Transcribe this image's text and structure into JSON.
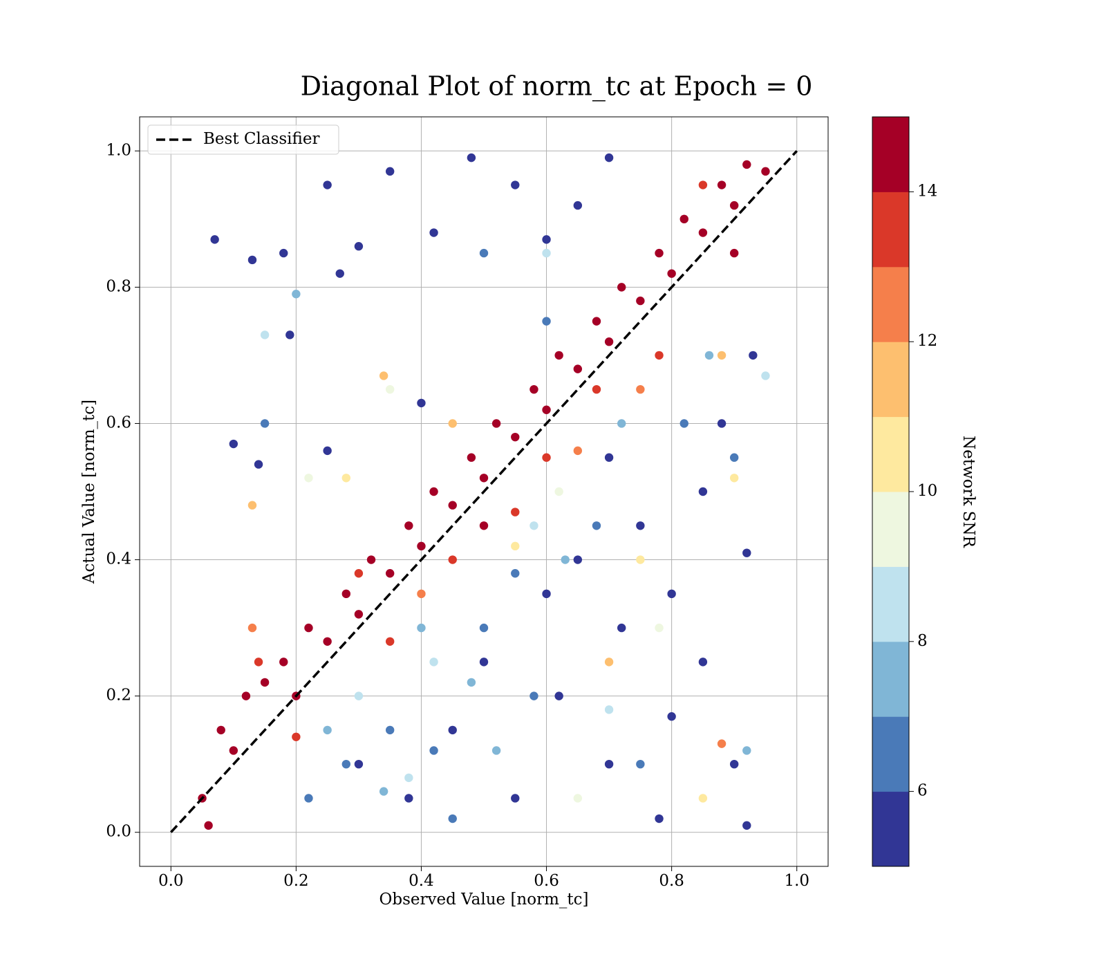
{
  "chart_data": {
    "type": "scatter",
    "title": "Diagonal Plot of norm_tc at Epoch = 0",
    "x_label": "Observed Value [norm_tc]",
    "y_label": "Actual Value [norm_tc]",
    "xlim": [
      -0.05,
      1.05
    ],
    "ylim": [
      -0.05,
      1.05
    ],
    "xticks": [
      {
        "value": 0,
        "label": "0.0"
      },
      {
        "value": 0.2,
        "label": "0.2"
      },
      {
        "value": 0.4,
        "label": "0.4"
      },
      {
        "value": 0.6,
        "label": "0.6"
      },
      {
        "value": 0.8,
        "label": "0.8"
      },
      {
        "value": 1,
        "label": "1.0"
      }
    ],
    "yticks": [
      {
        "value": 0,
        "label": "0.0"
      },
      {
        "value": 0.2,
        "label": "0.2"
      },
      {
        "value": 0.4,
        "label": "0.4"
      },
      {
        "value": 0.6,
        "label": "0.6"
      },
      {
        "value": 0.8,
        "label": "0.8"
      },
      {
        "value": 1,
        "label": "1.0"
      }
    ],
    "grid": true,
    "legend": "upper left",
    "reference_line": {
      "name": "Best Classifier",
      "x": [
        0,
        1
      ],
      "y": [
        0,
        1
      ],
      "color": "#000000",
      "style": "dashed"
    },
    "colorbar_label": "Network SNR",
    "clim": [
      5,
      15
    ],
    "colorbar_ticks": [
      6,
      8,
      10,
      12,
      14
    ],
    "colormap": [
      "#313695",
      "#4a7ab8",
      "#80b6d6",
      "#bfe2ee",
      "#eef7e0",
      "#fee99f",
      "#fdbf6f",
      "#f57f4b",
      "#da3829",
      "#a50026"
    ],
    "x": [
      0.07,
      0.13,
      0.18,
      0.25,
      0.3,
      0.35,
      0.42,
      0.48,
      0.55,
      0.6,
      0.65,
      0.7,
      0.1,
      0.19,
      0.27,
      0.4,
      0.7,
      0.75,
      0.8,
      0.85,
      0.9,
      0.92,
      0.62,
      0.55,
      0.7,
      0.8,
      0.45,
      0.38,
      0.6,
      0.5,
      0.72,
      0.88,
      0.93,
      0.65,
      0.85,
      0.3,
      0.92,
      0.78,
      0.25,
      0.14,
      0.22,
      0.35,
      0.5,
      0.58,
      0.68,
      0.75,
      0.82,
      0.9,
      0.42,
      0.55,
      0.15,
      0.5,
      0.6,
      0.28,
      0.45,
      0.25,
      0.4,
      0.48,
      0.63,
      0.72,
      0.92,
      0.34,
      0.2,
      0.86,
      0.52,
      0.3,
      0.42,
      0.58,
      0.15,
      0.7,
      0.6,
      0.95,
      0.38,
      0.22,
      0.35,
      0.62,
      0.78,
      0.65,
      0.28,
      0.55,
      0.9,
      0.75,
      0.85,
      0.13,
      0.34,
      0.45,
      0.7,
      0.88,
      0.13,
      0.4,
      0.65,
      0.88,
      0.75,
      0.14,
      0.3,
      0.45,
      0.6,
      0.78,
      0.2,
      0.35,
      0.68,
      0.85,
      0.55,
      0.05,
      0.08,
      0.1,
      0.12,
      0.15,
      0.18,
      0.2,
      0.22,
      0.25,
      0.28,
      0.3,
      0.32,
      0.35,
      0.38,
      0.4,
      0.42,
      0.45,
      0.48,
      0.5,
      0.52,
      0.55,
      0.58,
      0.6,
      0.62,
      0.65,
      0.68,
      0.7,
      0.72,
      0.75,
      0.78,
      0.8,
      0.82,
      0.85,
      0.88,
      0.9,
      0.92,
      0.95,
      0.06,
      0.9,
      0.5
    ],
    "y": [
      0.87,
      0.84,
      0.85,
      0.95,
      0.86,
      0.97,
      0.88,
      0.99,
      0.95,
      0.87,
      0.92,
      0.99,
      0.57,
      0.73,
      0.82,
      0.63,
      0.55,
      0.45,
      0.35,
      0.25,
      0.1,
      0.41,
      0.2,
      0.05,
      0.1,
      0.17,
      0.15,
      0.05,
      0.35,
      0.25,
      0.3,
      0.6,
      0.7,
      0.4,
      0.5,
      0.1,
      0.01,
      0.02,
      0.56,
      0.54,
      0.05,
      0.15,
      0.3,
      0.2,
      0.45,
      0.1,
      0.6,
      0.55,
      0.12,
      0.38,
      0.6,
      0.85,
      0.75,
      0.1,
      0.02,
      0.15,
      0.3,
      0.22,
      0.4,
      0.6,
      0.12,
      0.06,
      0.79,
      0.7,
      0.12,
      0.2,
      0.25,
      0.45,
      0.73,
      0.18,
      0.85,
      0.67,
      0.08,
      0.52,
      0.65,
      0.5,
      0.3,
      0.05,
      0.52,
      0.42,
      0.52,
      0.4,
      0.05,
      0.48,
      0.67,
      0.6,
      0.25,
      0.7,
      0.3,
      0.35,
      0.56,
      0.13,
      0.65,
      0.25,
      0.38,
      0.4,
      0.55,
      0.7,
      0.14,
      0.28,
      0.65,
      0.95,
      0.47,
      0.05,
      0.15,
      0.12,
      0.2,
      0.22,
      0.25,
      0.2,
      0.3,
      0.28,
      0.35,
      0.32,
      0.4,
      0.38,
      0.45,
      0.42,
      0.5,
      0.48,
      0.55,
      0.52,
      0.6,
      0.58,
      0.65,
      0.62,
      0.7,
      0.68,
      0.75,
      0.72,
      0.8,
      0.78,
      0.85,
      0.82,
      0.9,
      0.88,
      0.95,
      0.92,
      0.98,
      0.97,
      0.01,
      0.85,
      0.45
    ],
    "color_values": [
      5.5,
      5.5,
      5.5,
      5.5,
      5.5,
      5.5,
      5.5,
      5.5,
      5.5,
      5.5,
      5.5,
      5.5,
      5.5,
      5.5,
      5.5,
      5.5,
      5.5,
      5.5,
      5.5,
      5.5,
      5.5,
      5.5,
      5.5,
      5.5,
      5.5,
      5.5,
      5.5,
      5.5,
      5.5,
      5.5,
      5.5,
      5.5,
      5.5,
      5.5,
      5.5,
      5.5,
      5.5,
      5.5,
      5.5,
      5.5,
      6.5,
      6.5,
      6.5,
      6.5,
      6.5,
      6.5,
      6.5,
      6.5,
      6.5,
      6.5,
      6.5,
      6.5,
      6.5,
      6.5,
      6.5,
      7.5,
      7.5,
      7.5,
      7.5,
      7.5,
      7.5,
      7.5,
      7.5,
      7.5,
      7.5,
      8.5,
      8.5,
      8.5,
      8.5,
      8.5,
      8.5,
      8.5,
      8.5,
      9.5,
      9.5,
      9.5,
      9.5,
      9.5,
      10.5,
      10.5,
      10.5,
      10.5,
      10.5,
      11.5,
      11.5,
      11.5,
      11.5,
      11.5,
      12.5,
      12.5,
      12.5,
      12.5,
      12.5,
      13.5,
      13.5,
      13.5,
      13.5,
      13.5,
      13.5,
      13.5,
      13.5,
      13.5,
      13.5,
      14.5,
      14.5,
      14.5,
      14.5,
      14.5,
      14.5,
      14.5,
      14.5,
      14.5,
      14.5,
      14.5,
      14.5,
      14.5,
      14.5,
      14.5,
      14.5,
      14.5,
      14.5,
      14.5,
      14.5,
      14.5,
      14.5,
      14.5,
      14.5,
      14.5,
      14.5,
      14.5,
      14.5,
      14.5,
      14.5,
      14.5,
      14.5,
      14.5,
      14.5,
      14.5,
      14.5,
      14.5,
      14.5,
      14.5,
      14.5
    ]
  }
}
